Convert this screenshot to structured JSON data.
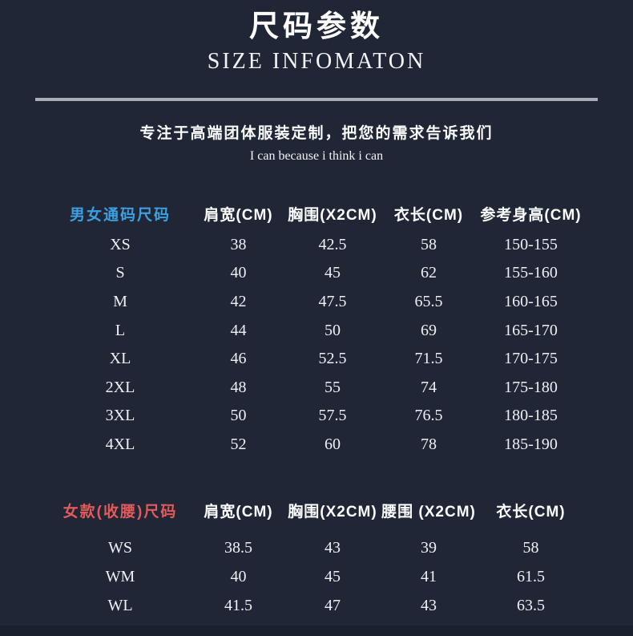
{
  "page": {
    "title_cn": "尺码参数",
    "title_en": "SIZE INFOMATON",
    "tagline_cn": "专注于高端团体服装定制，把您的需求告诉我们",
    "tagline_en": "I can because i think i can"
  },
  "colors": {
    "background": "#202635",
    "bottom_bar": "#1b202e",
    "divider": "#a9aeb5",
    "text": "#eef0f4",
    "unisex_title_blue": "#3d9ee0",
    "women_title_red": "#e25b5b"
  },
  "unisex_table": {
    "title": "男女通码尺码",
    "columns": [
      "肩宽(CM)",
      "胸围(X2CM)",
      "衣长(CM)",
      "参考身高(CM)"
    ],
    "rows": [
      [
        "XS",
        "38",
        "42.5",
        "58",
        "150-155"
      ],
      [
        "S",
        "40",
        "45",
        "62",
        "155-160"
      ],
      [
        "M",
        "42",
        "47.5",
        "65.5",
        "160-165"
      ],
      [
        "L",
        "44",
        "50",
        "69",
        "165-170"
      ],
      [
        "XL",
        "46",
        "52.5",
        "71.5",
        "170-175"
      ],
      [
        "2XL",
        "48",
        "55",
        "74",
        "175-180"
      ],
      [
        "3XL",
        "50",
        "57.5",
        "76.5",
        "180-185"
      ],
      [
        "4XL",
        "52",
        "60",
        "78",
        "185-190"
      ]
    ]
  },
  "women_table": {
    "title": "女款(收腰)尺码",
    "columns": [
      "肩宽(CM)",
      "胸围(X2CM)",
      "腰围 (X2CM)",
      "衣长(CM)"
    ],
    "rows": [
      [
        "WS",
        "38.5",
        "43",
        "39",
        "58"
      ],
      [
        "WM",
        "40",
        "45",
        "41",
        "61.5"
      ],
      [
        "WL",
        "41.5",
        "47",
        "43",
        "63.5"
      ]
    ]
  },
  "chart_data": [
    {
      "type": "table",
      "title": "男女通码尺码 (Unisex sizes)",
      "columns": [
        "尺码",
        "肩宽(CM)",
        "胸围(X2CM)",
        "衣长(CM)",
        "参考身高(CM)"
      ],
      "rows": [
        [
          "XS",
          38,
          42.5,
          58,
          "150-155"
        ],
        [
          "S",
          40,
          45,
          62,
          "155-160"
        ],
        [
          "M",
          42,
          47.5,
          65.5,
          "160-165"
        ],
        [
          "L",
          44,
          50,
          69,
          "165-170"
        ],
        [
          "XL",
          46,
          52.5,
          71.5,
          "170-175"
        ],
        [
          "2XL",
          48,
          55,
          74,
          "175-180"
        ],
        [
          "3XL",
          50,
          57.5,
          76.5,
          "180-185"
        ],
        [
          "4XL",
          52,
          60,
          78,
          "185-190"
        ]
      ]
    },
    {
      "type": "table",
      "title": "女款(收腰)尺码 (Women fitted sizes)",
      "columns": [
        "尺码",
        "肩宽(CM)",
        "胸围(X2CM)",
        "腰围(X2CM)",
        "衣长(CM)"
      ],
      "rows": [
        [
          "WS",
          38.5,
          43,
          39,
          58
        ],
        [
          "WM",
          40,
          45,
          41,
          61.5
        ],
        [
          "WL",
          41.5,
          47,
          43,
          63.5
        ]
      ]
    }
  ]
}
